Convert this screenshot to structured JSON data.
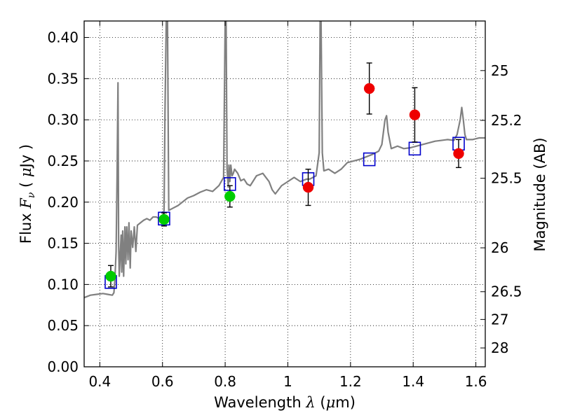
{
  "chart_data": {
    "type": "scatter",
    "xlabel_parts": {
      "prefix": "Wavelength",
      "symbol": "λ",
      "open": "(",
      "unit_mu": "μ",
      "unit": "m",
      "close": ")"
    },
    "ylabel_parts": {
      "prefix": "Flux",
      "symbol": "F",
      "subscript": "ν",
      "open": "(",
      "unit_mu": "μ",
      "unit": "Jy",
      "close": ")"
    },
    "y2label": "Magnitude (AB)",
    "xlim": [
      0.35,
      1.63
    ],
    "ylim": [
      0.0,
      0.42
    ],
    "grid": true,
    "x_ticks": [
      {
        "value": 0.4,
        "label": "0.4"
      },
      {
        "value": 0.6,
        "label": "0.6"
      },
      {
        "value": 0.8,
        "label": "0.8"
      },
      {
        "value": 1.0,
        "label": "1"
      },
      {
        "value": 1.2,
        "label": "1.2"
      },
      {
        "value": 1.4,
        "label": "1.4"
      },
      {
        "value": 1.6,
        "label": "1.6"
      }
    ],
    "y_ticks": [
      {
        "value": 0.0,
        "label": "0.00"
      },
      {
        "value": 0.05,
        "label": "0.05"
      },
      {
        "value": 0.1,
        "label": "0.10"
      },
      {
        "value": 0.15,
        "label": "0.15"
      },
      {
        "value": 0.2,
        "label": "0.20"
      },
      {
        "value": 0.25,
        "label": "0.25"
      },
      {
        "value": 0.3,
        "label": "0.30"
      },
      {
        "value": 0.35,
        "label": "0.35"
      },
      {
        "value": 0.4,
        "label": "0.40"
      }
    ],
    "y2_ticks": [
      {
        "flux": 0.3598,
        "label": "25"
      },
      {
        "flux": 0.2993,
        "label": "25.2"
      },
      {
        "flux": 0.229,
        "label": "25.5"
      },
      {
        "flux": 0.1445,
        "label": "26"
      },
      {
        "flux": 0.0912,
        "label": "26.5"
      },
      {
        "flux": 0.0575,
        "label": "27"
      },
      {
        "flux": 0.0229,
        "label": "28"
      }
    ],
    "series": [
      {
        "kind": "line",
        "color": "#808080",
        "x": [
          0.35,
          0.37,
          0.39,
          0.41,
          0.425,
          0.44,
          0.445,
          0.448,
          0.452,
          0.455,
          0.458,
          0.46,
          0.462,
          0.468,
          0.47,
          0.473,
          0.476,
          0.48,
          0.483,
          0.486,
          0.49,
          0.493,
          0.497,
          0.5,
          0.505,
          0.51,
          0.515,
          0.52,
          0.53,
          0.54,
          0.55,
          0.56,
          0.57,
          0.58,
          0.59,
          0.6,
          0.605,
          0.608,
          0.612,
          0.616,
          0.62,
          0.63,
          0.65,
          0.68,
          0.7,
          0.72,
          0.74,
          0.76,
          0.78,
          0.795,
          0.8,
          0.803,
          0.806,
          0.81,
          0.812,
          0.815,
          0.818,
          0.822,
          0.826,
          0.83,
          0.84,
          0.85,
          0.86,
          0.87,
          0.88,
          0.9,
          0.92,
          0.94,
          0.95,
          0.96,
          0.98,
          1.0,
          1.02,
          1.04,
          1.06,
          1.07,
          1.09,
          1.1,
          1.103,
          1.106,
          1.11,
          1.115,
          1.13,
          1.15,
          1.17,
          1.19,
          1.21,
          1.23,
          1.25,
          1.27,
          1.29,
          1.3,
          1.31,
          1.315,
          1.32,
          1.33,
          1.35,
          1.37,
          1.39,
          1.41,
          1.43,
          1.45,
          1.47,
          1.49,
          1.51,
          1.53,
          1.54,
          1.55,
          1.555,
          1.56,
          1.565,
          1.57,
          1.59,
          1.61,
          1.63
        ],
        "y": [
          0.084,
          0.087,
          0.088,
          0.089,
          0.088,
          0.087,
          0.09,
          0.105,
          0.14,
          0.23,
          0.345,
          0.15,
          0.11,
          0.16,
          0.115,
          0.165,
          0.11,
          0.17,
          0.125,
          0.17,
          0.13,
          0.175,
          0.12,
          0.165,
          0.145,
          0.17,
          0.14,
          0.172,
          0.175,
          0.178,
          0.18,
          0.178,
          0.182,
          0.182,
          0.18,
          0.182,
          0.19,
          0.31,
          0.42,
          0.42,
          0.19,
          0.192,
          0.196,
          0.205,
          0.208,
          0.212,
          0.215,
          0.213,
          0.22,
          0.23,
          0.42,
          0.42,
          0.24,
          0.218,
          0.245,
          0.225,
          0.245,
          0.232,
          0.235,
          0.24,
          0.235,
          0.226,
          0.228,
          0.222,
          0.22,
          0.232,
          0.235,
          0.225,
          0.215,
          0.21,
          0.22,
          0.225,
          0.23,
          0.225,
          0.228,
          0.228,
          0.232,
          0.26,
          0.42,
          0.42,
          0.26,
          0.238,
          0.24,
          0.235,
          0.24,
          0.248,
          0.25,
          0.252,
          0.255,
          0.258,
          0.262,
          0.27,
          0.3,
          0.305,
          0.285,
          0.265,
          0.268,
          0.265,
          0.266,
          0.268,
          0.27,
          0.272,
          0.274,
          0.275,
          0.276,
          0.275,
          0.282,
          0.3,
          0.315,
          0.3,
          0.282,
          0.276,
          0.276,
          0.278,
          0.278
        ]
      },
      {
        "kind": "square",
        "color": "#0000cc",
        "x": [
          0.435,
          0.605,
          0.815,
          1.065,
          1.26,
          1.405,
          1.545
        ],
        "y": [
          0.103,
          0.18,
          0.222,
          0.228,
          0.252,
          0.265,
          0.271
        ]
      },
      {
        "kind": "point",
        "color": "#00cc00",
        "x": [
          0.435,
          0.605,
          0.815
        ],
        "y": [
          0.11,
          0.179,
          0.207
        ],
        "yerr": [
          0.013,
          0.008,
          0.013
        ]
      },
      {
        "kind": "point",
        "color": "#ee0000",
        "x": [
          1.065,
          1.26,
          1.405,
          1.545
        ],
        "y": [
          0.218,
          0.338,
          0.306,
          0.259
        ],
        "yerr": [
          0.022,
          0.031,
          0.033,
          0.017
        ]
      }
    ]
  }
}
